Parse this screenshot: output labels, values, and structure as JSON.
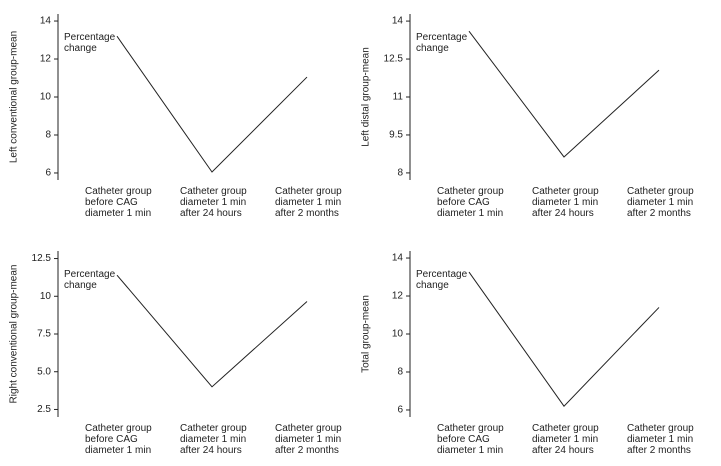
{
  "chart_data": [
    {
      "type": "line",
      "y_label": "Left conventional group-mean",
      "annotation": "Percentage\nchange",
      "categories": [
        "Catheter group\nbefore CAG\ndiameter 1 min",
        "Catheter group\ndiameter 1 min\nafter 24 hours",
        "Catheter group\ndiameter 1 min\nafter 2 months"
      ],
      "values": [
        13.2,
        6.05,
        11.05
      ],
      "color": "#222222",
      "ylim": [
        5.63,
        14.37
      ],
      "yticks": [
        6,
        8,
        10,
        12,
        14
      ]
    },
    {
      "type": "line",
      "y_label": "Left distal group-mean",
      "annotation": "Percentage\nchange",
      "categories": [
        "Catheter group\nbefore CAG\ndiameter 1 min",
        "Catheter group\ndiameter 1 min\nafter 24 hours",
        "Catheter group\ndiameter 1 min\nafter 2 months"
      ],
      "values": [
        13.6,
        8.63,
        12.06
      ],
      "color": "#222222",
      "ylim": [
        7.72,
        14.28
      ],
      "yticks": [
        8,
        9.5,
        11,
        12.5,
        14
      ]
    },
    {
      "type": "line",
      "y_label": "Right conventional group-mean",
      "annotation": "Percentage\nchange",
      "categories": [
        "Catheter group\nbefore CAG\ndiameter 1 min",
        "Catheter group\ndiameter 1 min\nafter 24 hours",
        "Catheter group\ndiameter 1 min\nafter 2 months"
      ],
      "values": [
        11.4,
        4.0,
        9.65
      ],
      "color": "#222222",
      "ylim": [
        2.0,
        13.0
      ],
      "yticks": [
        2.5,
        {
          "value": 5,
          "label": "5.0"
        },
        7.5,
        10,
        12.5
      ]
    },
    {
      "type": "line",
      "y_label": "Total group-mean",
      "annotation": "Percentage\nchange",
      "categories": [
        "Catheter group\nbefore CAG\ndiameter 1 min",
        "Catheter group\ndiameter 1 min\nafter 24 hours",
        "Catheter group\ndiameter 1 min\nafter 2 months"
      ],
      "values": [
        13.26,
        6.2,
        11.4
      ],
      "color": "#222222",
      "ylim": [
        5.63,
        14.37
      ],
      "yticks": [
        6,
        8,
        10,
        12,
        14
      ]
    }
  ]
}
